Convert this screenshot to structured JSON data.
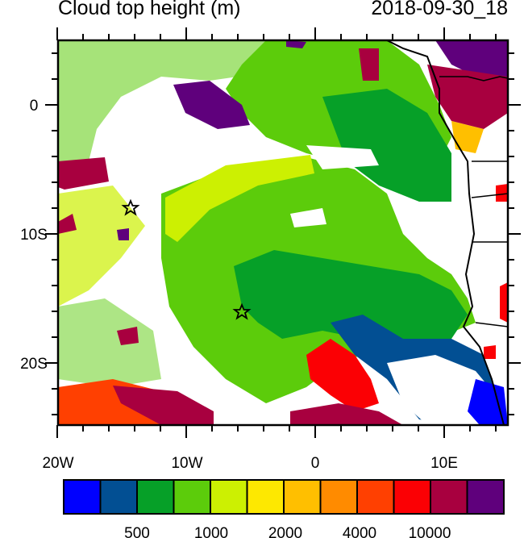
{
  "title": "Cloud top height (m)",
  "datetime": "2018-09-30_18",
  "x_axis": {
    "ticks": [
      "20W",
      "10W",
      "0",
      "10E"
    ],
    "range": [
      "20W",
      "15E"
    ]
  },
  "y_axis": {
    "ticks": [
      "0",
      "10S",
      "20S"
    ],
    "range": [
      "25S",
      "5N"
    ]
  },
  "colorbar": {
    "colors": [
      "#0000ff",
      "#024f93",
      "#06a028",
      "#5ccc0b",
      "#ccf002",
      "#fde801",
      "#ffbf00",
      "#ff8b00",
      "#ff4001",
      "#fb0004",
      "#a8003f",
      "#5f007c"
    ],
    "labels": [
      "500",
      "1000",
      "2000",
      "4000",
      "10000"
    ]
  },
  "markers": [
    {
      "type": "star",
      "lon": -14.4,
      "lat": -8.0
    },
    {
      "type": "star",
      "lon": -5.8,
      "lat": -16.0
    }
  ]
}
